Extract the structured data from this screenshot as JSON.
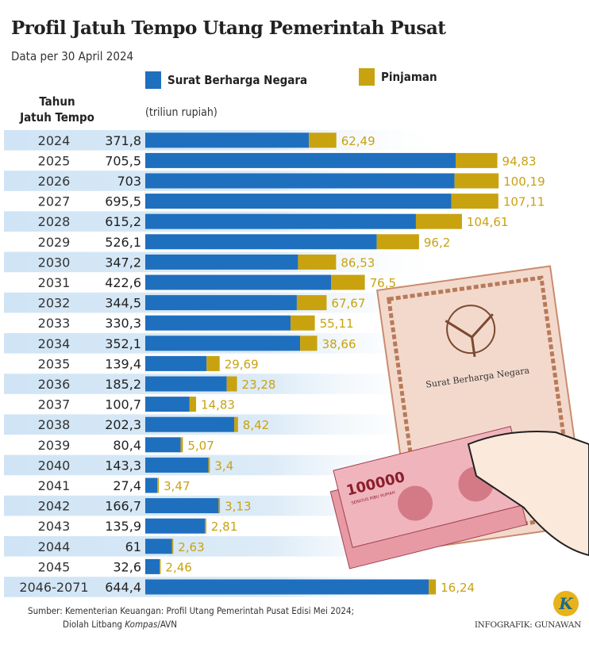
{
  "chart_data": {
    "type": "bar",
    "stacked": true,
    "orientation": "horizontal",
    "title": "Profil Jatuh Tempo Utang Pemerintah Pusat",
    "subtitle": "Data per 30 April 2024",
    "ylabel": "Tahun Jatuh Tempo",
    "xlabel": "(triliun rupiah)",
    "categories": [
      "2024",
      "2025",
      "2026",
      "2027",
      "2028",
      "2029",
      "2030",
      "2031",
      "2032",
      "2033",
      "2034",
      "2035",
      "2036",
      "2037",
      "2038",
      "2039",
      "2040",
      "2041",
      "2042",
      "2043",
      "2044",
      "2045",
      "2046-2071"
    ],
    "series": [
      {
        "name": "Surat Berharga Negara",
        "color": "#1f6fbf",
        "values": [
          371.8,
          705.5,
          703,
          695.5,
          615.2,
          526.1,
          347.2,
          422.6,
          344.5,
          330.3,
          352.1,
          139.4,
          185.2,
          100.7,
          202.3,
          80.4,
          143.3,
          27.4,
          166.7,
          135.9,
          61,
          32.6,
          644.4
        ],
        "labels": [
          "371,8",
          "705,5",
          "703",
          "695,5",
          "615,2",
          "526,1",
          "347,2",
          "422,6",
          "344,5",
          "330,3",
          "352,1",
          "139,4",
          "185,2",
          "100,7",
          "202,3",
          "80,4",
          "143,3",
          "27,4",
          "166,7",
          "135,9",
          "61",
          "32,6",
          "644,4"
        ]
      },
      {
        "name": "Pinjaman",
        "color": "#c9a210",
        "values": [
          62.49,
          94.83,
          100.19,
          107.11,
          104.61,
          96.2,
          86.53,
          76.5,
          67.67,
          55.11,
          38.66,
          29.69,
          23.28,
          14.83,
          8.42,
          5.07,
          3.4,
          3.47,
          3.13,
          2.81,
          2.63,
          2.46,
          16.24
        ],
        "labels": [
          "62,49",
          "94,83",
          "100,19",
          "107,11",
          "104,61",
          "96,2",
          "86,53",
          "76,5",
          "67,67",
          "55,11",
          "38,66",
          "29,69",
          "23,28",
          "14,83",
          "8,42",
          "5,07",
          "3,4",
          "3,47",
          "3,13",
          "2,81",
          "2,63",
          "2,46",
          "16,24"
        ]
      }
    ],
    "grid": false,
    "legend": "top"
  },
  "legend": {
    "sbn": "Surat Berharga Negara",
    "pinjaman": "Pinjaman"
  },
  "column_header": {
    "line1": "Tahun",
    "line2": "Jatuh Tempo"
  },
  "illustration": {
    "document_title": "Surat Berharga Negara",
    "banknote_value": "100000",
    "banknote_text": "SERATUS RIBU RUPIAH"
  },
  "source": {
    "line1": "Sumber: Kementerian Keuangan: Profil Utang Pemerintah Pusat Edisi Mei 2024;",
    "line2_prefix": "Diolah Litbang ",
    "line2_italic": "Kompas",
    "line2_suffix": "/AVN"
  },
  "credit": "INFOGRAFIK: GUNAWAN",
  "logo": "K"
}
